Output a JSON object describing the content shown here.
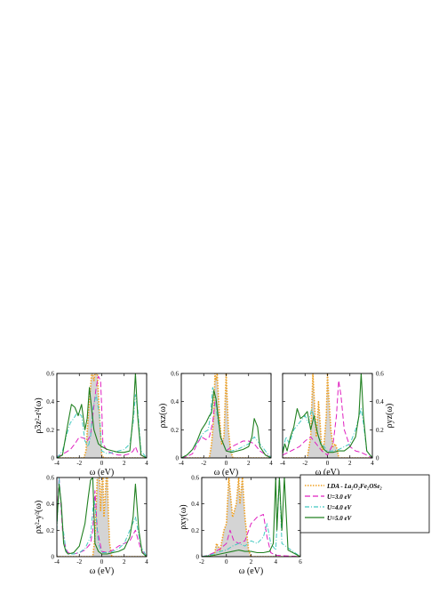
{
  "colors": {
    "lda_line": "#f0a020",
    "lda_fill": "#cccccc",
    "u3": "#e020c0",
    "u4": "#40c8c0",
    "u5": "#208020"
  },
  "legend": {
    "lda": "LDA - La₂O₂Fe₂OSe₂",
    "u3": "U=3.0 eV",
    "u4": "U=4.0 eV",
    "u5": "U=5.0 eV"
  },
  "chart_data": [
    {
      "type": "line",
      "panel": "3z2-r2",
      "ylabel": "ρ3z²-r²(ω)",
      "xlabel": "ω (eV)",
      "xlim": [
        -4,
        4
      ],
      "ylim": [
        0,
        0.6
      ],
      "xticks": [
        "-4",
        "-2",
        "0",
        "2",
        "4"
      ],
      "yticks": [
        "0",
        "0.2",
        "0.4",
        "0.6"
      ],
      "series": [
        {
          "key": "lda",
          "x": [
            -4,
            -1.6,
            -1.4,
            -1.2,
            -1.0,
            -0.9,
            -0.8,
            -0.7,
            -0.6,
            -0.5,
            -0.4,
            -0.3,
            -0.2,
            0.0,
            0.2,
            4
          ],
          "y": [
            0,
            0,
            0.05,
            0.3,
            0.5,
            0.6,
            0.6,
            0.55,
            0.6,
            0.6,
            0.6,
            0.45,
            0.3,
            0.02,
            0,
            0
          ]
        },
        {
          "key": "u3",
          "x": [
            -4,
            -3.6,
            -3.2,
            -2.8,
            -2.4,
            -2.0,
            -1.6,
            -1.3,
            -1.0,
            -0.8,
            -0.5,
            -0.3,
            -0.1,
            0.0,
            0.1,
            0.5,
            1.0,
            1.5,
            2.0,
            2.5,
            2.8,
            3.0,
            3.2,
            3.5,
            4
          ],
          "y": [
            0.01,
            0.02,
            0.04,
            0.06,
            0.1,
            0.15,
            0.14,
            0.12,
            0.16,
            0.3,
            0.5,
            0.58,
            0.55,
            0.35,
            0.1,
            0.05,
            0.03,
            0.02,
            0.02,
            0.03,
            0.05,
            0.08,
            0.04,
            0.02,
            0
          ]
        },
        {
          "key": "u4",
          "x": [
            -4,
            -3.5,
            -3.0,
            -2.8,
            -2.5,
            -2.2,
            -1.8,
            -1.5,
            -1.2,
            -1.0,
            -0.8,
            -0.5,
            -0.2,
            0.0,
            0.5,
            1.0,
            1.5,
            2.0,
            2.5,
            2.8,
            3.0,
            3.2,
            3.5,
            4
          ],
          "y": [
            0,
            0.05,
            0.2,
            0.25,
            0.28,
            0.32,
            0.3,
            0.12,
            0.08,
            0.15,
            0.35,
            0.45,
            0.3,
            0.05,
            0.03,
            0.04,
            0.05,
            0.06,
            0.1,
            0.25,
            0.45,
            0.35,
            0.05,
            0
          ]
        },
        {
          "key": "u5",
          "x": [
            -4,
            -3.5,
            -3.0,
            -2.7,
            -2.4,
            -2.1,
            -1.8,
            -1.5,
            -1.3,
            -1.1,
            -0.9,
            -0.7,
            -0.5,
            -0.3,
            0.0,
            0.5,
            1.0,
            1.5,
            2.0,
            2.5,
            2.8,
            3.0,
            3.2,
            3.5,
            4
          ],
          "y": [
            0,
            0.02,
            0.25,
            0.38,
            0.36,
            0.3,
            0.38,
            0.2,
            0.28,
            0.5,
            0.35,
            0.2,
            0.15,
            0.1,
            0.08,
            0.06,
            0.05,
            0.04,
            0.04,
            0.05,
            0.3,
            0.6,
            0.3,
            0.02,
            0
          ]
        }
      ]
    },
    {
      "type": "line",
      "panel": "xz",
      "ylabel": "ρxz(ω)",
      "xlabel": "ω (eV)",
      "xlim": [
        -4,
        4
      ],
      "ylim": [
        0,
        0.6
      ],
      "xticks": [
        "-4",
        "-2",
        "0",
        "2",
        "4"
      ],
      "yticks": [
        "0",
        "0.2",
        "0.4",
        "0.6"
      ],
      "series": [
        {
          "key": "lda",
          "x": [
            -4,
            -1.5,
            -1.3,
            -1.1,
            -1.0,
            -0.9,
            -0.8,
            -0.6,
            -0.4,
            -0.2,
            0.0,
            0.2,
            0.4,
            0.6,
            4
          ],
          "y": [
            0,
            0,
            0.1,
            0.3,
            0.6,
            0.55,
            0.6,
            0.3,
            0.1,
            0.15,
            0.6,
            0.2,
            0.05,
            0,
            0
          ]
        },
        {
          "key": "u3",
          "x": [
            -4,
            -3.5,
            -3.0,
            -2.6,
            -2.2,
            -1.8,
            -1.5,
            -1.2,
            -1.0,
            -0.8,
            -0.5,
            0.0,
            0.5,
            1.0,
            1.5,
            2.0,
            2.5,
            3.0,
            4
          ],
          "y": [
            0,
            0.01,
            0.03,
            0.1,
            0.15,
            0.13,
            0.15,
            0.25,
            0.4,
            0.35,
            0.15,
            0.05,
            0.08,
            0.1,
            0.12,
            0.12,
            0.1,
            0.05,
            0
          ]
        },
        {
          "key": "u4",
          "x": [
            -4,
            -3.5,
            -3.0,
            -2.5,
            -2.0,
            -1.6,
            -1.4,
            -1.2,
            -1.0,
            -0.8,
            -0.5,
            0.0,
            0.5,
            1.0,
            1.5,
            2.0,
            2.5,
            3.0,
            4
          ],
          "y": [
            0,
            0.02,
            0.06,
            0.12,
            0.18,
            0.2,
            0.3,
            0.5,
            0.45,
            0.3,
            0.15,
            0.05,
            0.05,
            0.06,
            0.08,
            0.1,
            0.15,
            0.1,
            0
          ]
        },
        {
          "key": "u5",
          "x": [
            -4,
            -3.5,
            -3.0,
            -2.6,
            -2.2,
            -1.8,
            -1.5,
            -1.3,
            -1.1,
            -0.9,
            -0.7,
            -0.5,
            0.0,
            0.5,
            1.0,
            1.5,
            2.0,
            2.3,
            2.5,
            2.8,
            3.0,
            3.5,
            4
          ],
          "y": [
            0,
            0.02,
            0.06,
            0.12,
            0.2,
            0.25,
            0.3,
            0.32,
            0.48,
            0.42,
            0.28,
            0.15,
            0.05,
            0.04,
            0.05,
            0.06,
            0.08,
            0.15,
            0.28,
            0.22,
            0.08,
            0.02,
            0
          ]
        }
      ]
    },
    {
      "type": "line",
      "panel": "yz",
      "ylabel": "ρyz(ω)",
      "xlabel": "ω (eV)",
      "xlim": [
        -4,
        4
      ],
      "ylim": [
        0,
        0.6
      ],
      "xticks": [
        "-4",
        "-2",
        "0",
        "2",
        "4"
      ],
      "yticks": [
        "0",
        "0.2",
        "0.4",
        "0.6"
      ],
      "series": [
        {
          "key": "lda",
          "x": [
            -4,
            -1.8,
            -1.5,
            -1.3,
            -1.1,
            -1.0,
            -0.9,
            -0.8,
            -0.7,
            -0.5,
            -0.3,
            -0.1,
            0.0,
            0.1,
            0.3,
            0.5,
            0.7,
            0.9,
            1.0,
            4
          ],
          "y": [
            0,
            0,
            0.15,
            0.6,
            0.3,
            0.15,
            0.25,
            0.4,
            0.3,
            0.05,
            0.1,
            0.3,
            0.6,
            0.45,
            0.2,
            0.08,
            0.1,
            0.05,
            0,
            0
          ]
        },
        {
          "key": "u3",
          "x": [
            -4,
            -3.5,
            -3.0,
            -2.5,
            -2.0,
            -1.5,
            -1.0,
            -0.5,
            0.0,
            0.5,
            0.8,
            1.0,
            1.2,
            1.5,
            2.0,
            2.5,
            3.0,
            4
          ],
          "y": [
            0.02,
            0.04,
            0.06,
            0.08,
            0.12,
            0.15,
            0.1,
            0.05,
            0.02,
            0.1,
            0.3,
            0.55,
            0.45,
            0.2,
            0.08,
            0.05,
            0.04,
            0
          ]
        },
        {
          "key": "u4",
          "x": [
            -4,
            -3.7,
            -3.4,
            -3.0,
            -2.5,
            -2.0,
            -1.7,
            -1.4,
            -1.1,
            -0.8,
            -0.5,
            0.0,
            0.5,
            1.0,
            1.5,
            2.0,
            2.5,
            3.0,
            3.2,
            3.5,
            4
          ],
          "y": [
            0.05,
            0.15,
            0.1,
            0.2,
            0.25,
            0.3,
            0.25,
            0.35,
            0.25,
            0.15,
            0.1,
            0.05,
            0.05,
            0.06,
            0.08,
            0.1,
            0.2,
            0.35,
            0.25,
            0.05,
            0
          ]
        },
        {
          "key": "u5",
          "x": [
            -4,
            -3.8,
            -3.6,
            -3.3,
            -3.0,
            -2.7,
            -2.4,
            -2.1,
            -1.8,
            -1.5,
            -1.2,
            -0.9,
            -0.6,
            -0.3,
            0.0,
            0.5,
            1.0,
            1.5,
            2.0,
            2.5,
            2.8,
            3.0,
            3.2,
            3.5,
            4
          ],
          "y": [
            0.03,
            0.1,
            0.05,
            0.15,
            0.22,
            0.35,
            0.28,
            0.3,
            0.33,
            0.2,
            0.3,
            0.18,
            0.1,
            0.06,
            0.04,
            0.04,
            0.05,
            0.05,
            0.08,
            0.15,
            0.3,
            0.6,
            0.3,
            0.05,
            0
          ]
        }
      ]
    },
    {
      "type": "line",
      "panel": "x2-y2",
      "ylabel": "ρx²-y²(ω)",
      "xlabel": "ω (eV)",
      "xlim": [
        -4,
        4
      ],
      "ylim": [
        0,
        0.6
      ],
      "xticks": [
        "-4",
        "-2",
        "0",
        "2",
        "4"
      ],
      "yticks": [
        "0",
        "0.2",
        "0.4",
        "0.6"
      ],
      "series": [
        {
          "key": "lda",
          "x": [
            -4,
            -0.8,
            -0.6,
            -0.4,
            -0.2,
            -0.1,
            0.0,
            0.1,
            0.2,
            0.3,
            0.4,
            0.5,
            0.6,
            0.7,
            0.9,
            4
          ],
          "y": [
            0,
            0,
            0.15,
            0.6,
            0.6,
            0.35,
            0.55,
            0.6,
            0.3,
            0.45,
            0.6,
            0.6,
            0.3,
            0.1,
            0,
            0
          ]
        },
        {
          "key": "u3",
          "x": [
            -4,
            -3.8,
            -3.5,
            -3.2,
            -3.0,
            -2.5,
            -2.0,
            -1.5,
            -1.0,
            -0.8,
            -0.6,
            -0.4,
            0.0,
            0.5,
            1.0,
            1.5,
            2.0,
            2.5,
            3.0,
            3.5,
            4
          ],
          "y": [
            0.3,
            0.6,
            0.2,
            0.06,
            0.03,
            0.02,
            0.03,
            0.05,
            0.1,
            0.2,
            0.5,
            0.2,
            0.04,
            0.03,
            0.05,
            0.08,
            0.1,
            0.12,
            0.2,
            0.05,
            0
          ]
        },
        {
          "key": "u4",
          "x": [
            -4,
            -3.8,
            -3.5,
            -3.2,
            -3.0,
            -2.5,
            -2.0,
            -1.5,
            -1.0,
            -0.7,
            -0.5,
            -0.3,
            0.0,
            0.5,
            1.0,
            1.5,
            2.0,
            2.5,
            3.0,
            3.5,
            4
          ],
          "y": [
            0.2,
            0.6,
            0.25,
            0.05,
            0.02,
            0.02,
            0.03,
            0.06,
            0.15,
            0.45,
            0.3,
            0.1,
            0.03,
            0.03,
            0.04,
            0.06,
            0.1,
            0.2,
            0.3,
            0.08,
            0
          ]
        },
        {
          "key": "u5",
          "x": [
            -4,
            -3.8,
            -3.6,
            -3.4,
            -3.2,
            -3.0,
            -2.5,
            -2.0,
            -1.5,
            -1.2,
            -1.0,
            -0.8,
            -0.6,
            -0.3,
            0.0,
            0.5,
            1.0,
            1.5,
            2.0,
            2.5,
            2.8,
            3.0,
            3.3,
            3.6,
            4
          ],
          "y": [
            0.25,
            0.55,
            0.4,
            0.1,
            0.04,
            0.02,
            0.03,
            0.08,
            0.25,
            0.45,
            0.58,
            0.6,
            0.1,
            0.04,
            0.02,
            0.02,
            0.03,
            0.04,
            0.06,
            0.15,
            0.3,
            0.55,
            0.2,
            0.03,
            0
          ]
        }
      ]
    },
    {
      "type": "line",
      "panel": "xy",
      "ylabel": "ρxy(ω)",
      "xlabel": "ω (eV)",
      "xlim": [
        -2,
        6
      ],
      "ylim": [
        0,
        0.6
      ],
      "xticks": [
        "-2",
        "0",
        "2",
        "4",
        "6"
      ],
      "yticks": [
        "0",
        "0.2",
        "0.4",
        "0.6"
      ],
      "series": [
        {
          "key": "lda",
          "x": [
            -2,
            -1.0,
            -0.8,
            -0.5,
            -0.2,
            0.0,
            0.2,
            0.5,
            0.8,
            1.0,
            1.1,
            1.3,
            1.5,
            1.8,
            2.0,
            6
          ],
          "y": [
            0,
            0,
            0.1,
            0.05,
            0.2,
            0.25,
            0.6,
            0.3,
            0.4,
            0.6,
            0.4,
            0.6,
            0.3,
            0.05,
            0,
            0
          ]
        },
        {
          "key": "u3",
          "x": [
            -2,
            -1.5,
            -1.0,
            -0.5,
            0.0,
            0.3,
            0.6,
            1.0,
            1.5,
            2.0,
            2.5,
            3.0,
            3.3,
            3.6,
            4.0,
            6
          ],
          "y": [
            0,
            0.01,
            0.03,
            0.06,
            0.1,
            0.2,
            0.12,
            0.1,
            0.12,
            0.25,
            0.3,
            0.32,
            0.15,
            0.03,
            0.01,
            0
          ]
        },
        {
          "key": "u4",
          "x": [
            -2,
            -1.5,
            -1.0,
            -0.5,
            0.0,
            0.5,
            1.0,
            1.5,
            2.0,
            2.5,
            3.0,
            3.3,
            3.6,
            4.0,
            4.3,
            4.5,
            6
          ],
          "y": [
            0,
            0.01,
            0.02,
            0.04,
            0.05,
            0.08,
            0.1,
            0.08,
            0.12,
            0.1,
            0.15,
            0.25,
            0.1,
            0.05,
            0.6,
            0.1,
            0
          ]
        },
        {
          "key": "u5",
          "x": [
            -2,
            -1.5,
            -1.0,
            -0.5,
            0.0,
            0.5,
            1.0,
            1.5,
            2.0,
            2.5,
            3.0,
            3.5,
            3.8,
            4.0,
            4.1,
            4.3,
            4.5,
            4.7,
            5.0,
            6
          ],
          "y": [
            0,
            0.005,
            0.01,
            0.02,
            0.03,
            0.04,
            0.05,
            0.04,
            0.04,
            0.03,
            0.03,
            0.04,
            0.1,
            0.6,
            0.2,
            0.6,
            0.2,
            0.6,
            0.05,
            0
          ]
        }
      ]
    }
  ]
}
